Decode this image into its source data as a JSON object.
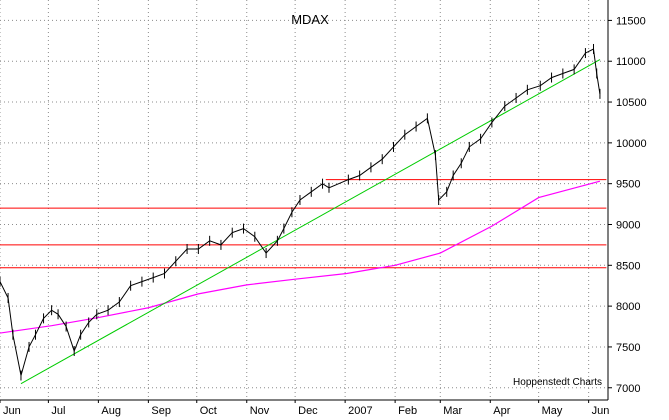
{
  "chart_data": {
    "type": "line",
    "title": "MDAX",
    "credit": "Hoppenstedt Charts",
    "ylim": [
      6850,
      11750
    ],
    "x_ticks": [
      "Jun",
      "Jul",
      "Aug",
      "Sep",
      "Oct",
      "Nov",
      "Dec",
      "2007",
      "Feb",
      "Mar",
      "Apr",
      "May",
      "Jun"
    ],
    "y_ticks": [
      7000,
      7500,
      8000,
      8500,
      9000,
      9500,
      10000,
      10500,
      11000,
      11500
    ],
    "grid": true,
    "series": [
      {
        "kind": "price-bars",
        "color": "#000000",
        "x": [
          "2006-06-01",
          "2006-06-06",
          "2006-06-09",
          "2006-06-14",
          "2006-06-19",
          "2006-06-23",
          "2006-06-28",
          "2006-07-03",
          "2006-07-07",
          "2006-07-12",
          "2006-07-17",
          "2006-07-21",
          "2006-07-26",
          "2006-07-31",
          "2006-08-07",
          "2006-08-14",
          "2006-08-21",
          "2006-08-28",
          "2006-09-04",
          "2006-09-11",
          "2006-09-18",
          "2006-09-25",
          "2006-10-02",
          "2006-10-09",
          "2006-10-16",
          "2006-10-23",
          "2006-10-30",
          "2006-11-06",
          "2006-11-13",
          "2006-11-20",
          "2006-11-24",
          "2006-11-29",
          "2006-12-04",
          "2006-12-11",
          "2006-12-18",
          "2006-12-22",
          "2007-01-03",
          "2007-01-10",
          "2007-01-17",
          "2007-01-24",
          "2007-01-31",
          "2007-02-07",
          "2007-02-14",
          "2007-02-21",
          "2007-02-26",
          "2007-02-28",
          "2007-03-05",
          "2007-03-09",
          "2007-03-14",
          "2007-03-19",
          "2007-03-26",
          "2007-04-02",
          "2007-04-10",
          "2007-04-17",
          "2007-04-24",
          "2007-05-02",
          "2007-05-09",
          "2007-05-16",
          "2007-05-23",
          "2007-05-30",
          "2007-06-04",
          "2007-06-06",
          "2007-06-08"
        ],
        "values": [
          8300,
          8100,
          7650,
          7150,
          7500,
          7650,
          7850,
          7950,
          7900,
          7750,
          7450,
          7650,
          7800,
          7900,
          7950,
          8050,
          8250,
          8300,
          8350,
          8400,
          8550,
          8700,
          8700,
          8800,
          8750,
          8900,
          8950,
          8850,
          8650,
          8800,
          8950,
          9150,
          9300,
          9400,
          9500,
          9450,
          9550,
          9600,
          9700,
          9800,
          9950,
          10100,
          10200,
          10300,
          9850,
          9300,
          9400,
          9600,
          9750,
          9950,
          10050,
          10250,
          10450,
          10550,
          10650,
          10700,
          10800,
          10850,
          10900,
          11100,
          11150,
          10850,
          10600
        ]
      },
      {
        "kind": "moving-average",
        "color": "#ff00ff",
        "x": [
          "2006-06-01",
          "2006-07-03",
          "2006-08-01",
          "2006-09-01",
          "2006-10-02",
          "2006-11-01",
          "2006-12-01",
          "2007-01-02",
          "2007-02-01",
          "2007-03-01",
          "2007-04-02",
          "2007-05-01",
          "2007-06-08"
        ],
        "values": [
          7670,
          7760,
          7860,
          7980,
          8150,
          8260,
          8330,
          8400,
          8500,
          8650,
          8980,
          9330,
          9530
        ]
      }
    ],
    "trend_line": {
      "color": "#00cc00",
      "x": [
        "2006-06-14",
        "2007-06-08"
      ],
      "values": [
        7050,
        11020
      ]
    },
    "horizontal_lines": [
      {
        "color": "#ff0000",
        "y": 9550,
        "x_start": "2006-12-20",
        "x_end": "2007-06-12"
      },
      {
        "color": "#ff0000",
        "y": 9200,
        "x_start": "2006-06-01",
        "x_end": "2007-06-12"
      },
      {
        "color": "#ff0000",
        "y": 8750,
        "x_start": "2006-06-01",
        "x_end": "2007-06-12"
      },
      {
        "color": "#ff0000",
        "y": 8470,
        "x_start": "2006-06-01",
        "x_end": "2007-06-12"
      }
    ]
  }
}
